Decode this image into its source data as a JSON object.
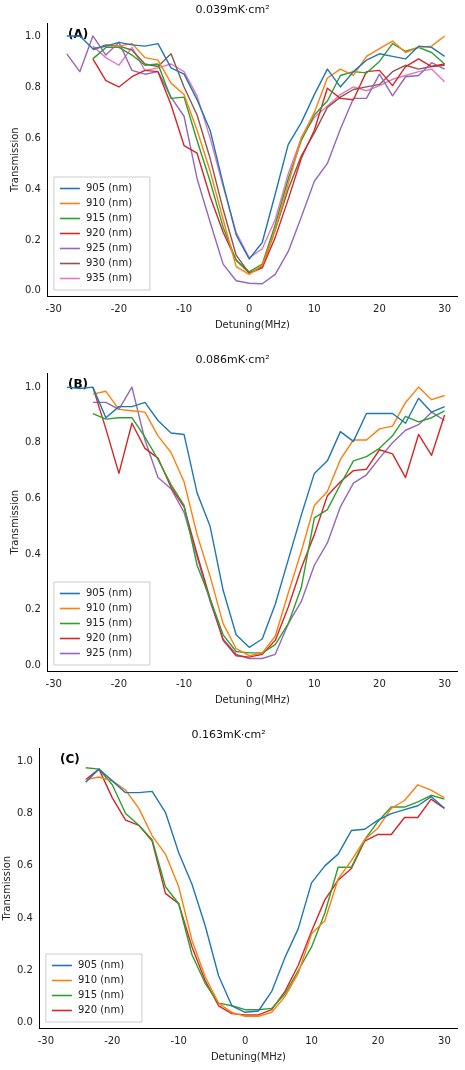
{
  "chart_data": [
    {
      "type": "line",
      "title": "0.039mK·cm²",
      "xlabel": "Detuning(MHz)",
      "ylabel": "Transmission",
      "annotations": [
        "(A)"
      ],
      "x": [
        -28,
        -26,
        -24,
        -22,
        -20,
        -18,
        -16,
        -14,
        -12,
        -10,
        -8,
        -6,
        -4,
        -2,
        0,
        2,
        4,
        6,
        8,
        10,
        12,
        14,
        16,
        18,
        20,
        22,
        24,
        26,
        28,
        30
      ],
      "xlim": [
        -30.9,
        31.9
      ],
      "xticks": [
        -30,
        -20,
        -10,
        0,
        10,
        20,
        30
      ],
      "ylim": [
        -0.02,
        1.05
      ],
      "yticks": [
        {
          "value": 0,
          "label": "0.0"
        },
        {
          "value": 0.2,
          "label": "0.2"
        },
        {
          "value": 0.4,
          "label": "0.4"
        },
        {
          "value": 0.6,
          "label": "0.6"
        },
        {
          "value": 0.8,
          "label": "0.8"
        },
        {
          "value": 1,
          "label": "1.0"
        }
      ],
      "grid": false,
      "legend": "bottom left",
      "marker": "none",
      "line_style": "solid",
      "series": [
        {
          "name": "905 (nm)",
          "color": "#1f77b4",
          "values": [
            1.0,
            1.0,
            0.95,
            0.96,
            0.975,
            0.965,
            0.96,
            0.97,
            0.875,
            0.85,
            0.75,
            0.63,
            0.42,
            0.22,
            0.125,
            0.19,
            0.38,
            0.575,
            0.66,
            0.77,
            0.87,
            0.8,
            0.86,
            0.905,
            0.93,
            0.92,
            0.91,
            0.96,
            0.955,
            0.92
          ]
        },
        {
          "name": "910 (nm)",
          "color": "#ff7f0e",
          "values": [
            null,
            null,
            0.95,
            0.96,
            0.96,
            0.97,
            0.915,
            0.905,
            0.815,
            0.77,
            0.63,
            0.47,
            0.28,
            0.095,
            0.065,
            0.1,
            0.24,
            0.42,
            0.6,
            0.7,
            0.835,
            0.87,
            0.845,
            0.92,
            0.95,
            0.98,
            0.935,
            0.955,
            0.96,
            1.0
          ]
        },
        {
          "name": "915 (nm)",
          "color": "#2ca02c",
          "values": [
            null,
            null,
            0.91,
            0.955,
            0.955,
            0.925,
            0.885,
            0.89,
            0.755,
            0.76,
            0.59,
            0.43,
            0.25,
            0.12,
            0.075,
            0.105,
            0.26,
            0.44,
            0.59,
            0.69,
            0.745,
            0.845,
            0.86,
            0.855,
            0.9,
            0.97,
            0.94,
            0.955,
            0.935,
            0.89
          ]
        },
        {
          "name": "920 (nm)",
          "color": "#d62728",
          "values": [
            null,
            null,
            0.91,
            0.825,
            0.8,
            0.84,
            0.865,
            0.86,
            0.73,
            0.57,
            0.54,
            0.37,
            0.23,
            0.12,
            0.07,
            0.09,
            0.21,
            0.36,
            0.52,
            0.63,
            0.795,
            0.755,
            0.75,
            0.86,
            0.865,
            0.805,
            0.88,
            0.91,
            0.88,
            0.89
          ]
        },
        {
          "name": "925 (nm)",
          "color": "#9467bd",
          "values": [
            0.93,
            0.86,
            1.0,
            0.925,
            0.975,
            0.865,
            0.85,
            0.86,
            0.76,
            0.685,
            0.44,
            0.27,
            0.105,
            0.04,
            0.03,
            0.028,
            0.065,
            0.155,
            0.29,
            0.43,
            0.5,
            0.635,
            0.755,
            0.755,
            0.85,
            0.765,
            0.84,
            0.845,
            0.895,
            0.87
          ]
        },
        {
          "name": "930 (nm)",
          "color": "#8c564b",
          "values": [
            null,
            null,
            0.945,
            0.965,
            0.96,
            0.945,
            0.89,
            0.88,
            0.93,
            0.8,
            0.69,
            0.52,
            0.32,
            0.14,
            0.07,
            0.095,
            0.24,
            0.4,
            0.53,
            0.62,
            0.72,
            0.76,
            0.79,
            0.8,
            0.81,
            0.86,
            0.885,
            0.87,
            0.88,
            0.885
          ]
        },
        {
          "name": "935 (nm)",
          "color": "#e377c2",
          "values": [
            null,
            null,
            0.96,
            0.915,
            0.885,
            0.955,
            0.865,
            0.875,
            0.89,
            0.86,
            0.765,
            0.6,
            0.41,
            0.23,
            0.13,
            0.165,
            0.28,
            0.46,
            0.6,
            0.68,
            0.725,
            0.77,
            0.8,
            0.785,
            0.805,
            0.83,
            0.845,
            0.86,
            0.87,
            0.82
          ]
        }
      ]
    },
    {
      "type": "line",
      "title": "0.086mK·cm²",
      "xlabel": "Detuning(MHz)",
      "ylabel": "Transmission",
      "annotations": [
        "(B)"
      ],
      "x": [
        -28,
        -26,
        -24,
        -22,
        -20,
        -18,
        -16,
        -14,
        -12,
        -10,
        -8,
        -6,
        -4,
        -2,
        0,
        2,
        4,
        6,
        8,
        10,
        12,
        14,
        16,
        18,
        20,
        22,
        24,
        26,
        28,
        30
      ],
      "xlim": [
        -30.9,
        31.9
      ],
      "xticks": [
        -30,
        -20,
        -10,
        0,
        10,
        20,
        30
      ],
      "ylim": [
        -0.02,
        1.05
      ],
      "yticks": [
        {
          "value": 0,
          "label": "0.0"
        },
        {
          "value": 0.2,
          "label": "0.2"
        },
        {
          "value": 0.4,
          "label": "0.4"
        },
        {
          "value": 0.6,
          "label": "0.6"
        },
        {
          "value": 0.8,
          "label": "0.8"
        },
        {
          "value": 1,
          "label": "1.0"
        }
      ],
      "grid": false,
      "legend": "bottom left",
      "marker": "none",
      "line_style": "solid",
      "series": [
        {
          "name": "905 (nm)",
          "color": "#1f77b4",
          "values": [
            1.0,
            0.995,
            1.0,
            0.89,
            0.93,
            0.93,
            0.945,
            0.88,
            0.835,
            0.83,
            0.62,
            0.5,
            0.27,
            0.11,
            0.065,
            0.095,
            0.22,
            0.38,
            0.54,
            0.69,
            0.735,
            0.84,
            0.805,
            0.905,
            0.905,
            0.905,
            0.87,
            0.96,
            0.91,
            0.93
          ]
        },
        {
          "name": "910 (nm)",
          "color": "#ff7f0e",
          "values": [
            null,
            null,
            0.975,
            0.985,
            0.92,
            0.915,
            0.91,
            0.825,
            0.765,
            0.66,
            0.47,
            0.32,
            0.15,
            0.06,
            0.035,
            0.045,
            0.105,
            0.26,
            0.41,
            0.575,
            0.625,
            0.74,
            0.81,
            0.81,
            0.85,
            0.86,
            0.945,
            1.0,
            0.955,
            0.97
          ]
        },
        {
          "name": "915 (nm)",
          "color": "#2ca02c",
          "values": [
            null,
            null,
            0.905,
            0.885,
            0.89,
            0.89,
            0.82,
            0.74,
            0.65,
            0.575,
            0.36,
            0.24,
            0.11,
            0.05,
            0.045,
            0.045,
            0.075,
            0.15,
            0.28,
            0.53,
            0.56,
            0.65,
            0.735,
            0.75,
            0.78,
            0.825,
            0.895,
            0.875,
            0.89,
            0.915
          ]
        },
        {
          "name": "920 (nm)",
          "color": "#d62728",
          "values": [
            null,
            null,
            1.0,
            0.85,
            0.69,
            0.87,
            0.78,
            0.745,
            0.64,
            0.57,
            0.4,
            0.24,
            0.09,
            0.035,
            0.03,
            0.04,
            0.09,
            0.21,
            0.35,
            0.47,
            0.61,
            0.66,
            0.7,
            0.705,
            0.775,
            0.76,
            0.675,
            0.83,
            0.755,
            0.9
          ]
        },
        {
          "name": "925 (nm)",
          "color": "#9467bd",
          "values": [
            null,
            null,
            0.945,
            0.945,
            0.92,
            1.0,
            0.81,
            0.675,
            0.635,
            0.55,
            0.39,
            0.23,
            0.095,
            0.04,
            0.025,
            0.025,
            0.04,
            0.15,
            0.23,
            0.36,
            0.44,
            0.57,
            0.655,
            0.685,
            0.745,
            0.8,
            0.845,
            0.865,
            0.91,
            0.88
          ]
        }
      ]
    },
    {
      "type": "line",
      "title": "0.163mK·cm²",
      "xlabel": "Detuning(MHz)",
      "ylabel": "Transmission",
      "annotations": [
        "(C)"
      ],
      "x": [
        -24,
        -22,
        -20,
        -18,
        -16,
        -14,
        -12,
        -10,
        -8,
        -6,
        -4,
        -2,
        0,
        2,
        4,
        6,
        8,
        10,
        12,
        14,
        16,
        18,
        20,
        22,
        24,
        26,
        28,
        30
      ],
      "xlim": [
        -30.9,
        31.9
      ],
      "xticks": [
        -30,
        -20,
        -10,
        0,
        10,
        20,
        30
      ],
      "ylim": [
        -0.02,
        1.05
      ],
      "yticks": [
        {
          "value": 0,
          "label": "0.0"
        },
        {
          "value": 0.2,
          "label": "0.2"
        },
        {
          "value": 0.4,
          "label": "0.4"
        },
        {
          "value": 0.6,
          "label": "0.6"
        },
        {
          "value": 0.8,
          "label": "0.8"
        },
        {
          "value": 1,
          "label": "1.0"
        }
      ],
      "grid": false,
      "legend": "bottom left",
      "marker": "none",
      "line_style": "solid",
      "series": [
        {
          "name": "905 (nm)",
          "color": "#1f77b4",
          "values": [
            0.92,
            0.97,
            0.925,
            0.88,
            0.88,
            0.885,
            0.805,
            0.65,
            0.53,
            0.37,
            0.18,
            0.065,
            0.04,
            0.045,
            0.12,
            0.25,
            0.36,
            0.535,
            0.6,
            0.645,
            0.735,
            0.74,
            0.775,
            0.8,
            0.815,
            0.83,
            0.865,
            0.82
          ]
        },
        {
          "name": "910 (nm)",
          "color": "#ff7f0e",
          "values": [
            0.93,
            0.94,
            0.925,
            0.89,
            0.82,
            0.715,
            0.645,
            0.52,
            0.315,
            0.175,
            0.075,
            0.04,
            0.025,
            0.025,
            0.04,
            0.1,
            0.19,
            0.34,
            0.39,
            0.55,
            0.62,
            0.7,
            0.745,
            0.82,
            0.85,
            0.91,
            0.89,
            0.86
          ]
        },
        {
          "name": "915 (nm)",
          "color": "#2ca02c",
          "values": [
            0.975,
            0.97,
            0.91,
            0.8,
            0.755,
            0.7,
            0.52,
            0.455,
            0.26,
            0.15,
            0.075,
            0.065,
            0.05,
            0.05,
            0.055,
            0.11,
            0.2,
            0.29,
            0.42,
            0.595,
            0.595,
            0.7,
            0.77,
            0.825,
            0.825,
            0.845,
            0.87,
            0.855
          ]
        },
        {
          "name": "920 (nm)",
          "color": "#d62728",
          "values": [
            0.93,
            0.97,
            0.86,
            0.775,
            0.755,
            0.695,
            0.495,
            0.455,
            0.29,
            0.16,
            0.065,
            0.035,
            0.03,
            0.03,
            0.05,
            0.12,
            0.22,
            0.35,
            0.47,
            0.545,
            0.59,
            0.695,
            0.72,
            0.72,
            0.785,
            0.785,
            0.855,
            0.82
          ]
        }
      ]
    }
  ]
}
